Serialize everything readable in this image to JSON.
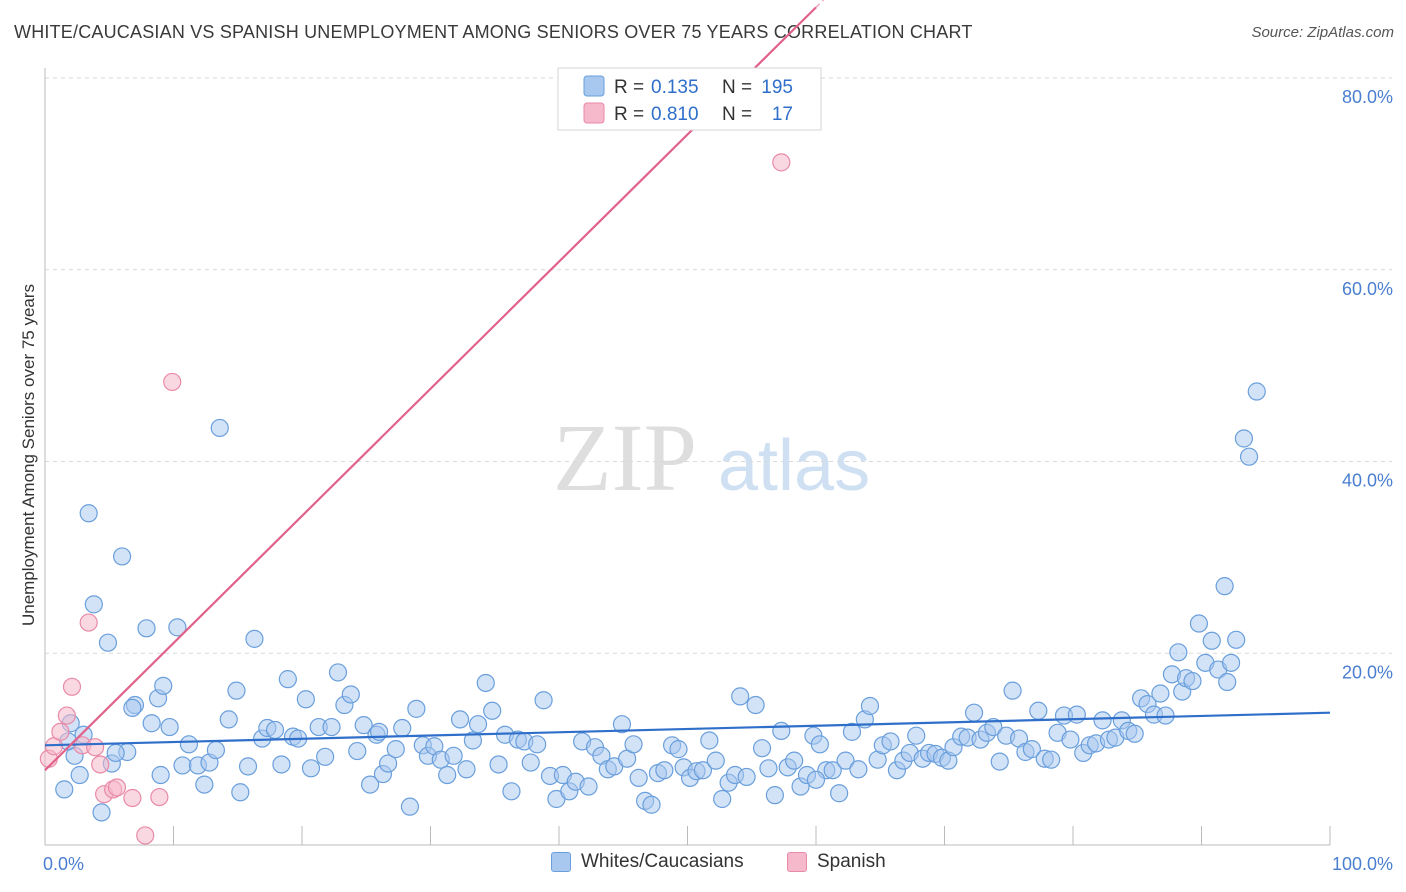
{
  "header": {
    "title": "WHITE/CAUCASIAN VS SPANISH UNEMPLOYMENT AMONG SENIORS OVER 75 YEARS CORRELATION CHART",
    "source": "Source: ZipAtlas.com"
  },
  "watermark": {
    "zip": "ZIP",
    "atlas": "atlas"
  },
  "colors": {
    "blue_fill": "#a8c8f0",
    "blue_stroke": "#6a9fdc",
    "blue_line": "#2f6fca",
    "pink_fill": "#f6b8cb",
    "pink_stroke": "#e98aa8",
    "pink_line": "#e0628a",
    "tick_text": "#4a7fd0",
    "grid": "#d9d9d9"
  },
  "legend": {
    "rows": [
      {
        "r_label": "R =",
        "r_value": "0.135",
        "n_label": "N =",
        "n_value": "195"
      },
      {
        "r_label": "R =",
        "r_value": "0.810",
        "n_label": "N =",
        "n_value": "17"
      }
    ]
  },
  "bottom_legend": {
    "series1": "Whites/Caucasians",
    "series2": "Spanish"
  },
  "chart_data": {
    "type": "scatter",
    "title": "WHITE/CAUCASIAN VS SPANISH UNEMPLOYMENT AMONG SENIORS OVER 75 YEARS CORRELATION CHART",
    "xlabel": "",
    "ylabel": "Unemployment Among Seniors over 75 years",
    "x_ticks": [
      "0.0%",
      "100.0%"
    ],
    "y_ticks": [
      "20.0%",
      "40.0%",
      "60.0%",
      "80.0%"
    ],
    "xlim": [
      0,
      100
    ],
    "ylim": [
      0,
      80
    ],
    "grid": true,
    "legend_position": "top-center",
    "series": [
      {
        "name": "Whites/Caucasians",
        "R": 0.135,
        "N": 195,
        "trend": {
          "x": [
            0,
            100
          ],
          "y": [
            10.4,
            13.8
          ]
        },
        "points": [
          [
            1.5,
            5.8
          ],
          [
            2,
            12.7
          ],
          [
            2.3,
            9.3
          ],
          [
            2.7,
            7.3
          ],
          [
            3.4,
            34.6
          ],
          [
            3.8,
            25.1
          ],
          [
            4.4,
            3.4
          ],
          [
            4.9,
            21.1
          ],
          [
            5.2,
            8.5
          ],
          [
            6,
            30.1
          ],
          [
            6.4,
            9.7
          ],
          [
            7,
            14.6
          ],
          [
            7.9,
            22.6
          ],
          [
            8.3,
            12.7
          ],
          [
            8.8,
            15.3
          ],
          [
            9.2,
            16.6
          ],
          [
            9.7,
            12.3
          ],
          [
            10.3,
            22.7
          ],
          [
            10.7,
            8.3
          ],
          [
            11.2,
            10.5
          ],
          [
            11.9,
            8.3
          ],
          [
            12.4,
            6.3
          ],
          [
            12.8,
            8.6
          ],
          [
            13.3,
            9.9
          ],
          [
            13.6,
            43.5
          ],
          [
            14.3,
            13.1
          ],
          [
            14.9,
            16.1
          ],
          [
            15.2,
            5.5
          ],
          [
            15.8,
            8.2
          ],
          [
            16.3,
            21.5
          ],
          [
            16.9,
            11.1
          ],
          [
            17.3,
            12.2
          ],
          [
            17.9,
            12.0
          ],
          [
            18.4,
            8.4
          ],
          [
            18.9,
            17.3
          ],
          [
            19.3,
            11.3
          ],
          [
            19.7,
            11.1
          ],
          [
            20.3,
            15.2
          ],
          [
            20.7,
            8.0
          ],
          [
            21.3,
            12.3
          ],
          [
            21.8,
            9.2
          ],
          [
            22.3,
            12.3
          ],
          [
            22.8,
            18.0
          ],
          [
            23.3,
            14.6
          ],
          [
            23.8,
            15.7
          ],
          [
            24.3,
            9.8
          ],
          [
            24.8,
            12.5
          ],
          [
            25.3,
            6.3
          ],
          [
            25.8,
            11.5
          ],
          [
            26.3,
            7.4
          ],
          [
            26.7,
            8.5
          ],
          [
            27.3,
            10.0
          ],
          [
            27.8,
            12.2
          ],
          [
            28.4,
            4.0
          ],
          [
            28.9,
            14.2
          ],
          [
            29.4,
            10.4
          ],
          [
            29.8,
            9.3
          ],
          [
            30.3,
            10.3
          ],
          [
            30.8,
            8.9
          ],
          [
            31.3,
            7.3
          ],
          [
            31.8,
            9.3
          ],
          [
            32.3,
            13.1
          ],
          [
            32.8,
            7.9
          ],
          [
            33.3,
            10.9
          ],
          [
            33.7,
            12.6
          ],
          [
            34.3,
            16.9
          ],
          [
            34.8,
            14.0
          ],
          [
            35.3,
            8.4
          ],
          [
            35.8,
            11.5
          ],
          [
            36.3,
            5.6
          ],
          [
            36.8,
            11.0
          ],
          [
            37.3,
            10.8
          ],
          [
            37.8,
            8.6
          ],
          [
            38.3,
            10.5
          ],
          [
            38.8,
            15.1
          ],
          [
            39.3,
            7.2
          ],
          [
            39.8,
            4.8
          ],
          [
            40.3,
            7.3
          ],
          [
            40.8,
            5.6
          ],
          [
            41.3,
            6.6
          ],
          [
            41.8,
            10.8
          ],
          [
            42.3,
            6.1
          ],
          [
            42.8,
            10.2
          ],
          [
            43.3,
            9.3
          ],
          [
            43.8,
            7.9
          ],
          [
            44.3,
            8.2
          ],
          [
            44.9,
            12.6
          ],
          [
            45.3,
            9.0
          ],
          [
            45.8,
            10.5
          ],
          [
            46.2,
            7.0
          ],
          [
            46.7,
            4.6
          ],
          [
            47.2,
            4.2
          ],
          [
            47.7,
            7.5
          ],
          [
            48.2,
            7.8
          ],
          [
            48.8,
            10.4
          ],
          [
            49.3,
            10.0
          ],
          [
            49.7,
            8.1
          ],
          [
            50.2,
            7.0
          ],
          [
            50.7,
            7.7
          ],
          [
            51.2,
            7.8
          ],
          [
            51.7,
            10.9
          ],
          [
            52.2,
            8.8
          ],
          [
            52.7,
            4.8
          ],
          [
            53.2,
            6.5
          ],
          [
            53.7,
            7.3
          ],
          [
            54.1,
            15.5
          ],
          [
            54.6,
            7.1
          ],
          [
            55.3,
            14.6
          ],
          [
            55.8,
            10.1
          ],
          [
            56.3,
            8.0
          ],
          [
            56.8,
            5.2
          ],
          [
            57.3,
            11.9
          ],
          [
            57.8,
            8.1
          ],
          [
            58.3,
            8.8
          ],
          [
            58.8,
            6.1
          ],
          [
            59.3,
            7.3
          ],
          [
            59.8,
            11.4
          ],
          [
            60.3,
            10.5
          ],
          [
            60.8,
            7.8
          ],
          [
            61.3,
            7.8
          ],
          [
            61.8,
            5.4
          ],
          [
            62.3,
            8.8
          ],
          [
            62.8,
            11.8
          ],
          [
            63.3,
            7.9
          ],
          [
            63.8,
            13.1
          ],
          [
            64.2,
            14.5
          ],
          [
            64.8,
            8.9
          ],
          [
            65.2,
            10.4
          ],
          [
            65.8,
            10.8
          ],
          [
            66.3,
            7.8
          ],
          [
            66.8,
            8.8
          ],
          [
            67.3,
            9.6
          ],
          [
            67.8,
            11.4
          ],
          [
            68.3,
            9.0
          ],
          [
            68.8,
            9.6
          ],
          [
            69.3,
            9.5
          ],
          [
            69.8,
            9.1
          ],
          [
            70.3,
            8.8
          ],
          [
            70.7,
            10.2
          ],
          [
            71.3,
            11.3
          ],
          [
            71.8,
            11.2
          ],
          [
            72.3,
            13.8
          ],
          [
            72.8,
            11.0
          ],
          [
            73.3,
            11.7
          ],
          [
            73.8,
            12.3
          ],
          [
            74.3,
            8.7
          ],
          [
            74.8,
            11.4
          ],
          [
            75.3,
            16.1
          ],
          [
            75.8,
            11.1
          ],
          [
            76.3,
            9.7
          ],
          [
            76.8,
            10.0
          ],
          [
            77.3,
            14.0
          ],
          [
            77.8,
            9.0
          ],
          [
            78.3,
            8.9
          ],
          [
            78.8,
            11.7
          ],
          [
            79.3,
            13.5
          ],
          [
            79.8,
            11.0
          ],
          [
            80.3,
            13.6
          ],
          [
            80.8,
            9.6
          ],
          [
            81.3,
            10.4
          ],
          [
            81.8,
            10.6
          ],
          [
            82.3,
            13.0
          ],
          [
            82.8,
            11.0
          ],
          [
            83.3,
            11.2
          ],
          [
            83.8,
            13.0
          ],
          [
            84.3,
            11.9
          ],
          [
            84.8,
            11.6
          ],
          [
            85.3,
            15.3
          ],
          [
            85.8,
            14.7
          ],
          [
            86.3,
            13.6
          ],
          [
            86.8,
            15.8
          ],
          [
            87.2,
            13.5
          ],
          [
            87.7,
            17.8
          ],
          [
            88.2,
            20.1
          ],
          [
            88.5,
            16.0
          ],
          [
            88.8,
            17.4
          ],
          [
            89.3,
            17.1
          ],
          [
            89.8,
            23.1
          ],
          [
            90.3,
            19.0
          ],
          [
            90.8,
            21.3
          ],
          [
            91.3,
            18.3
          ],
          [
            91.8,
            27.0
          ],
          [
            92.3,
            19.0
          ],
          [
            92.7,
            21.4
          ],
          [
            93.3,
            42.4
          ],
          [
            93.7,
            40.5
          ],
          [
            94.3,
            47.3
          ],
          [
            92.0,
            17.0
          ],
          [
            1.8,
            10.8
          ],
          [
            3.0,
            11.5
          ],
          [
            5.5,
            9.6
          ],
          [
            6.8,
            14.3
          ],
          [
            9.0,
            7.3
          ],
          [
            26.0,
            11.8
          ],
          [
            60.0,
            6.8
          ]
        ]
      },
      {
        "name": "Spanish",
        "R": 0.81,
        "N": 17,
        "trend": {
          "x": [
            0,
            65
          ],
          "y": [
            7.8,
            94.0
          ]
        },
        "points": [
          [
            0.3,
            9.0
          ],
          [
            0.7,
            10.3
          ],
          [
            1.2,
            11.8
          ],
          [
            1.7,
            13.5
          ],
          [
            2.1,
            16.5
          ],
          [
            2.9,
            10.4
          ],
          [
            3.4,
            23.2
          ],
          [
            3.9,
            10.2
          ],
          [
            4.3,
            8.4
          ],
          [
            4.6,
            5.3
          ],
          [
            5.3,
            5.8
          ],
          [
            5.6,
            6.0
          ],
          [
            6.8,
            4.9
          ],
          [
            7.8,
            1.0
          ],
          [
            8.9,
            5.0
          ],
          [
            9.9,
            48.3
          ],
          [
            57.3,
            71.2
          ]
        ]
      }
    ]
  }
}
